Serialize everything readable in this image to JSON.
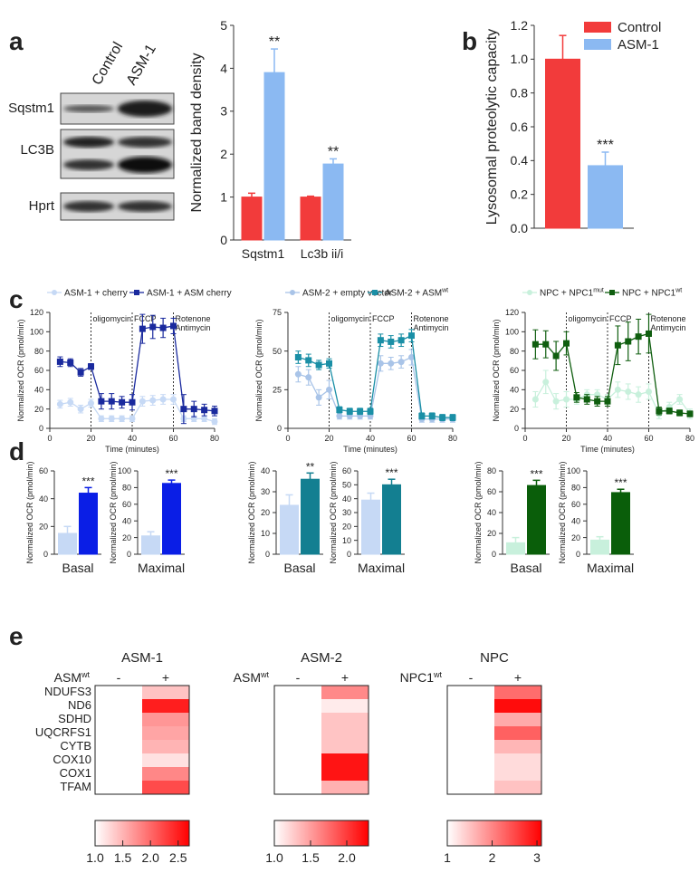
{
  "panel_labels": [
    "a",
    "b",
    "c",
    "d",
    "e"
  ],
  "blot": {
    "lanes": [
      "Control",
      "ASM-1"
    ],
    "rows": [
      "Sqstm1",
      "LC3B",
      "Hprt"
    ]
  },
  "chart_data": [
    {
      "type": "bar",
      "ylabel": "Normalized band density",
      "categories": [
        "Sqstm1",
        "Lc3b ii/i"
      ],
      "ylim": [
        0,
        5
      ],
      "yticks": [
        0,
        1,
        2,
        3,
        4,
        5
      ],
      "series": [
        {
          "color": "#f23b3b",
          "values": [
            1.0,
            1.0
          ],
          "errors": [
            0.09,
            0.02
          ]
        },
        {
          "color": "#8bb9f2",
          "values": [
            3.9,
            1.77
          ],
          "errors": [
            0.55,
            0.12
          ],
          "annotations": [
            "**",
            "**"
          ]
        }
      ]
    },
    {
      "type": "bar",
      "ylabel": "Lysosomal proteolytic capacity",
      "categories": [
        null
      ],
      "ylim": [
        0,
        1.2
      ],
      "yticks": [
        {
          "value": 0,
          "label": "0.0"
        },
        0.2,
        0.4,
        0.6,
        0.8,
        {
          "value": 1,
          "label": "1.0"
        },
        1.2
      ],
      "legend": "upper right",
      "series": [
        {
          "name": "Control",
          "color": "#f23b3b",
          "values": [
            1.0
          ],
          "errors": [
            0.14
          ]
        },
        {
          "name": "ASM-1",
          "color": "#8bb9f2",
          "values": [
            0.37
          ],
          "errors": [
            0.08
          ],
          "annotations": [
            "***"
          ]
        }
      ]
    },
    {
      "type": "line",
      "xlabel": "Time (minutes)",
      "ylabel": "Normalized OCR (pmol/min)",
      "xlim": [
        0,
        80
      ],
      "xticks": [
        0,
        20,
        40,
        60,
        80
      ],
      "ylim": [
        0,
        120
      ],
      "yticks": [
        0,
        20,
        40,
        60,
        80,
        100,
        120
      ],
      "events": [
        {
          "x": 20,
          "labels": [
            "oligomycin"
          ]
        },
        {
          "x": 40,
          "labels": [
            "FCCP"
          ]
        },
        {
          "x": 60,
          "labels": [
            "Rotenone",
            "Antimycin"
          ]
        }
      ],
      "x": [
        5,
        10,
        15,
        20,
        25,
        30,
        35,
        40,
        45,
        50,
        55,
        60,
        65,
        70,
        75,
        80
      ],
      "series": [
        {
          "name": "ASM-1 + cherry",
          "color": "#c6d9f5",
          "marker": "circle",
          "values": [
            25,
            27,
            20,
            26,
            10,
            10,
            10,
            10,
            28,
            29,
            30,
            30,
            10,
            10,
            10,
            7
          ],
          "errors": [
            4,
            4,
            4,
            4,
            3,
            3,
            3,
            3,
            5,
            5,
            5,
            5,
            3,
            3,
            3,
            3
          ]
        },
        {
          "name": "ASM-1 + ASM cherry",
          "color": "#1a2a9e",
          "marker": "square",
          "values": [
            69,
            68,
            58,
            64,
            28,
            28,
            27,
            27,
            103,
            105,
            104,
            106,
            20,
            20,
            19,
            18
          ],
          "errors": [
            5,
            4,
            4,
            3,
            8,
            8,
            6,
            8,
            15,
            12,
            10,
            8,
            15,
            8,
            6,
            5
          ]
        }
      ]
    },
    {
      "type": "line",
      "xlabel": "Time (minutes)",
      "ylabel": "Normalized OCR (pmol/min)",
      "xlim": [
        0,
        80
      ],
      "xticks": [
        0,
        20,
        40,
        60,
        80
      ],
      "ylim": [
        0,
        75
      ],
      "yticks": [
        0,
        25,
        50,
        75
      ],
      "events": [
        {
          "x": 20,
          "labels": [
            "oligomycin"
          ]
        },
        {
          "x": 40,
          "labels": [
            "FCCP"
          ]
        },
        {
          "x": 60,
          "labels": [
            "Rotenone",
            "Antimycin"
          ]
        }
      ],
      "x": [
        5,
        10,
        15,
        20,
        25,
        30,
        35,
        40,
        45,
        50,
        55,
        60,
        65,
        70,
        75,
        80
      ],
      "series": [
        {
          "name": "ASM-2 + empty vector",
          "color": "#a9c4e8",
          "marker": "circle",
          "values": [
            35,
            33,
            20,
            25,
            8,
            8,
            8,
            8,
            42,
            42,
            43,
            46,
            6,
            6,
            6,
            6
          ],
          "errors": [
            5,
            5,
            5,
            6,
            2,
            2,
            2,
            2,
            5,
            4,
            4,
            5,
            2,
            2,
            2,
            2
          ]
        },
        {
          "name": "ASM-2 + ASM",
          "superscript": "wt",
          "color": "#1a8fa6",
          "marker": "square",
          "values": [
            46,
            44,
            41,
            42,
            12,
            11,
            11,
            11,
            57,
            56,
            57,
            60,
            8,
            8,
            7,
            7
          ],
          "errors": [
            4,
            4,
            3,
            3,
            2,
            2,
            2,
            2,
            4,
            4,
            4,
            4,
            2,
            2,
            2,
            2
          ]
        }
      ]
    },
    {
      "type": "line",
      "xlabel": "Time (minutes)",
      "ylabel": "Normalized OCR (pmol/min)",
      "xlim": [
        0,
        80
      ],
      "xticks": [
        0,
        20,
        40,
        60,
        80
      ],
      "ylim": [
        0,
        120
      ],
      "yticks": [
        0,
        20,
        40,
        60,
        80,
        100,
        120
      ],
      "events": [
        {
          "x": 20,
          "labels": [
            "oligomycin"
          ]
        },
        {
          "x": 40,
          "labels": [
            "FCCP"
          ]
        },
        {
          "x": 60,
          "labels": [
            "Rotenone",
            "Antimycin"
          ]
        }
      ],
      "x": [
        5,
        10,
        15,
        20,
        25,
        30,
        35,
        40,
        45,
        50,
        55,
        60,
        65,
        70,
        75,
        80
      ],
      "series": [
        {
          "name": "NPC + NPC1",
          "superscript": "mut",
          "color": "#c8f0dc",
          "marker": "circle",
          "values": [
            30,
            48,
            28,
            30,
            30,
            35,
            35,
            30,
            40,
            38,
            35,
            38,
            15,
            22,
            30,
            15
          ],
          "errors": [
            8,
            12,
            8,
            8,
            5,
            5,
            5,
            5,
            8,
            8,
            8,
            8,
            5,
            5,
            5,
            5
          ]
        },
        {
          "name": "NPC + NPC1",
          "superscript": "wt",
          "color": "#0f5e0f",
          "marker": "square",
          "values": [
            87,
            87,
            75,
            88,
            32,
            30,
            28,
            28,
            86,
            90,
            95,
            98,
            18,
            18,
            16,
            15
          ],
          "errors": [
            15,
            14,
            15,
            12,
            5,
            5,
            5,
            5,
            20,
            20,
            18,
            20,
            4,
            3,
            3,
            3
          ]
        }
      ]
    },
    {
      "type": "bar",
      "ylabel": "Normalized OCR (pmol/min)",
      "categories": [
        "Basal"
      ],
      "ylim": [
        0,
        60
      ],
      "yticks": [
        0,
        20,
        40,
        60
      ],
      "series": [
        {
          "color": "#c6d9f5",
          "values": [
            15
          ],
          "errors": [
            5
          ]
        },
        {
          "color": "#0a1ee6",
          "values": [
            44
          ],
          "errors": [
            4
          ],
          "annotations": [
            "***"
          ]
        }
      ]
    },
    {
      "type": "bar",
      "ylabel": "Normalized OCR (pmol/min)",
      "categories": [
        "Maximal"
      ],
      "ylim": [
        0,
        100
      ],
      "yticks": [
        0,
        20,
        40,
        60,
        80,
        100
      ],
      "series": [
        {
          "color": "#c6d9f5",
          "values": [
            22
          ],
          "errors": [
            5
          ]
        },
        {
          "color": "#0a1ee6",
          "values": [
            85
          ],
          "errors": [
            4
          ],
          "annotations": [
            "***"
          ]
        }
      ]
    },
    {
      "type": "bar",
      "ylabel": "Normalized OCR (pmol/min)",
      "categories": [
        "Basal"
      ],
      "ylim": [
        0,
        40
      ],
      "yticks": [
        0,
        10,
        20,
        30,
        40
      ],
      "series": [
        {
          "color": "#c6d9f5",
          "values": [
            23.5
          ],
          "errors": [
            5
          ]
        },
        {
          "color": "#137f91",
          "values": [
            36
          ],
          "errors": [
            3
          ],
          "annotations": [
            "**"
          ]
        }
      ]
    },
    {
      "type": "bar",
      "ylabel": "Normalized OCR (pmol/min)",
      "categories": [
        "Maximal"
      ],
      "ylim": [
        0,
        60
      ],
      "yticks": [
        0,
        10,
        20,
        30,
        40,
        50,
        60
      ],
      "series": [
        {
          "color": "#c6d9f5",
          "values": [
            39
          ],
          "errors": [
            5
          ]
        },
        {
          "color": "#137f91",
          "values": [
            50
          ],
          "errors": [
            4
          ],
          "annotations": [
            "***"
          ]
        }
      ]
    },
    {
      "type": "bar",
      "ylabel": "Normalized OCR (pmol/min)",
      "categories": [
        "Basal"
      ],
      "ylim": [
        0,
        80
      ],
      "yticks": [
        0,
        20,
        40,
        60,
        80
      ],
      "series": [
        {
          "color": "#c8f0dc",
          "values": [
            11
          ],
          "errors": [
            5
          ]
        },
        {
          "color": "#0a5e0a",
          "values": [
            66
          ],
          "errors": [
            5
          ],
          "annotations": [
            "***"
          ]
        }
      ]
    },
    {
      "type": "bar",
      "ylabel": "Normalized OCR (pmol/min)",
      "categories": [
        "Maximal"
      ],
      "ylim": [
        0,
        100
      ],
      "yticks": [
        0,
        20,
        40,
        60,
        80,
        100
      ],
      "series": [
        {
          "color": "#c8f0dc",
          "values": [
            17
          ],
          "errors": [
            4
          ]
        },
        {
          "color": "#0a5e0a",
          "values": [
            74
          ],
          "errors": [
            4
          ],
          "annotations": [
            "***"
          ]
        }
      ]
    },
    {
      "type": "heatmap",
      "title": "ASM-1",
      "condition": "ASM",
      "condition_superscript": "wt",
      "columns": [
        "-",
        "+"
      ],
      "rows": [
        "NDUFS3",
        "ND6",
        "SDHD",
        "UQCRFS1",
        "CYTB",
        "COX10",
        "COX1",
        "TFAM"
      ],
      "values": [
        [
          1,
          1.4
        ],
        [
          1,
          2.5
        ],
        [
          1,
          1.7
        ],
        [
          1,
          1.6
        ],
        [
          1,
          1.5
        ],
        [
          1,
          1.2
        ],
        [
          1,
          1.8
        ],
        [
          1,
          2.2
        ]
      ],
      "clim": [
        1,
        2.7
      ],
      "cticks": [
        {
          "value": 1,
          "label": "1.0"
        },
        1.5,
        {
          "value": 2,
          "label": "2.0"
        },
        2.5
      ]
    },
    {
      "type": "heatmap",
      "title": "ASM-2",
      "condition": "ASM",
      "condition_superscript": "wt",
      "columns": [
        "-",
        "+"
      ],
      "values": [
        [
          1,
          1.6
        ],
        [
          1,
          1.1
        ],
        [
          1,
          1.3
        ],
        [
          1,
          1.3
        ],
        [
          1,
          1.3
        ],
        [
          1,
          2.2
        ],
        [
          1,
          2.2
        ],
        [
          1,
          1.4
        ]
      ],
      "clim": [
        1,
        2.3
      ],
      "cticks": [
        {
          "value": 1,
          "label": "1.0"
        },
        1.5,
        {
          "value": 2,
          "label": "2.0"
        }
      ]
    },
    {
      "type": "heatmap",
      "title": "NPC",
      "condition": "NPC1",
      "condition_superscript": "wt",
      "columns": [
        "-",
        "+"
      ],
      "values": [
        [
          1,
          2.2
        ],
        [
          1,
          3.0
        ],
        [
          1,
          1.7
        ],
        [
          1,
          2.3
        ],
        [
          1,
          1.6
        ],
        [
          1,
          1.3
        ],
        [
          1,
          1.3
        ],
        [
          1,
          1.5
        ]
      ],
      "clim": [
        1,
        3.1
      ],
      "cticks": [
        1,
        2,
        3
      ]
    }
  ]
}
